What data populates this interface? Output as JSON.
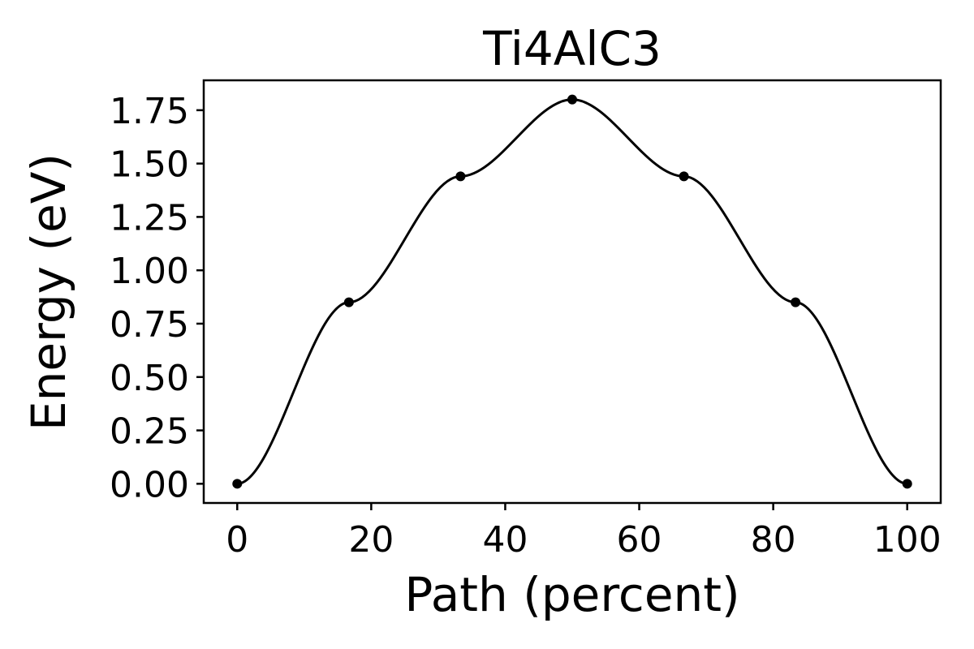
{
  "chart_data": {
    "type": "line",
    "title": "Ti4AlC3",
    "xlabel": "Path (percent)",
    "ylabel": "Energy (eV)",
    "xlim": [
      -5,
      105
    ],
    "ylim": [
      -0.09,
      1.89
    ],
    "xticks": [
      0,
      20,
      40,
      60,
      80,
      100
    ],
    "xtick_labels": [
      "0",
      "20",
      "40",
      "60",
      "80",
      "100"
    ],
    "yticks": [
      0.0,
      0.25,
      0.5,
      0.75,
      1.0,
      1.25,
      1.5,
      1.75
    ],
    "ytick_labels": [
      "0.00",
      "0.25",
      "0.50",
      "0.75",
      "1.00",
      "1.25",
      "1.50",
      "1.75"
    ],
    "grid": false,
    "legend": "none",
    "line_color": "#000000",
    "series": [
      {
        "style": "smooth-line-with-markers",
        "x": [
          0,
          16.67,
          33.33,
          50,
          66.67,
          83.33,
          100
        ],
        "y": [
          0.0,
          0.85,
          1.44,
          1.8,
          1.44,
          0.85,
          0.0
        ]
      }
    ]
  }
}
